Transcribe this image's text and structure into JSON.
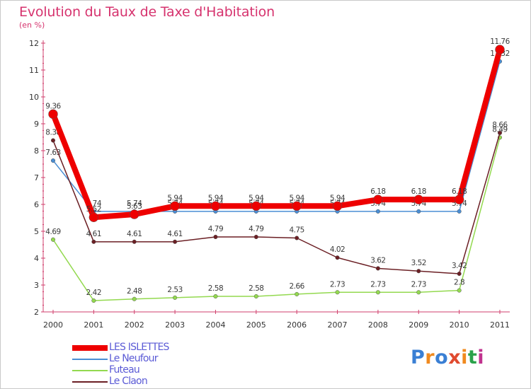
{
  "title": "Evolution du Taux de Taxe d'Habitation",
  "subtitle": "(en %)",
  "brand": {
    "text": "Proxiti",
    "colors": [
      "#3a7fd4",
      "#f08a1f",
      "#3a7fd4",
      "#e04a2f",
      "#f08a1f",
      "#2aa24a",
      "#c0328e"
    ]
  },
  "chart_data": {
    "type": "line",
    "x": [
      "2000",
      "2001",
      "2002",
      "2003",
      "2004",
      "2005",
      "2006",
      "2007",
      "2008",
      "2009",
      "2010",
      "2011"
    ],
    "ylim": [
      2,
      12
    ],
    "yticks": [
      "2",
      "3",
      "4",
      "5",
      "6",
      "7",
      "8",
      "9",
      "10",
      "11",
      "12"
    ],
    "grid": false,
    "legend_position": "bottom-left",
    "series": [
      {
        "name": "Le Neufour",
        "color": "#4a8ed4",
        "width": 1.5,
        "marker": 2.8,
        "values": [
          7.63,
          5.74,
          5.74,
          5.74,
          5.74,
          5.74,
          5.74,
          5.74,
          5.74,
          5.74,
          5.74,
          11.32
        ],
        "labels": [
          "7.63",
          "5.74",
          "5.74",
          "5.74",
          "5.74",
          "5.74",
          "5.74",
          "5.74",
          "5.74",
          "5.74",
          "5.74",
          "11.32"
        ]
      },
      {
        "name": "Futeau",
        "color": "#93d94f",
        "width": 1.5,
        "marker": 2.8,
        "values": [
          4.69,
          2.42,
          2.48,
          2.53,
          2.58,
          2.58,
          2.66,
          2.73,
          2.73,
          2.73,
          2.8,
          8.49
        ],
        "labels": [
          "4.69",
          "2.42",
          "2.48",
          "2.53",
          "2.58",
          "2.58",
          "2.66",
          "2.73",
          "2.73",
          "2.73",
          "2.8",
          "8.49"
        ]
      },
      {
        "name": "Le Claon",
        "color": "#6b1f24",
        "width": 1.5,
        "marker": 2.8,
        "values": [
          8.38,
          4.61,
          4.61,
          4.61,
          4.79,
          4.79,
          4.75,
          4.02,
          3.62,
          3.52,
          3.42,
          8.66
        ],
        "labels": [
          "8.38",
          "4.61",
          "4.61",
          "4.61",
          "4.79",
          "4.79",
          "4.75",
          "4.02",
          "3.62",
          "3.52",
          "3.42",
          "8.66"
        ]
      },
      {
        "name": "LES ISLETTES",
        "color": "#ee0000",
        "width": 8,
        "marker": 6.5,
        "values": [
          9.36,
          5.52,
          5.63,
          5.94,
          5.94,
          5.94,
          5.94,
          5.94,
          6.18,
          6.18,
          6.18,
          11.76
        ],
        "labels": [
          "9.36",
          "5.52",
          "5.63",
          "5.94",
          "5.94",
          "5.94",
          "5.94",
          "5.94",
          "6.18",
          "6.18",
          "6.18",
          "11.76"
        ]
      }
    ]
  },
  "legend": [
    {
      "name": "LES ISLETTES",
      "color": "#ee0000",
      "thickness": 8
    },
    {
      "name": "Le Neufour",
      "color": "#4a8ed4",
      "thickness": 2
    },
    {
      "name": "Futeau",
      "color": "#93d94f",
      "thickness": 2
    },
    {
      "name": "Le Claon",
      "color": "#6b1f24",
      "thickness": 2
    }
  ]
}
